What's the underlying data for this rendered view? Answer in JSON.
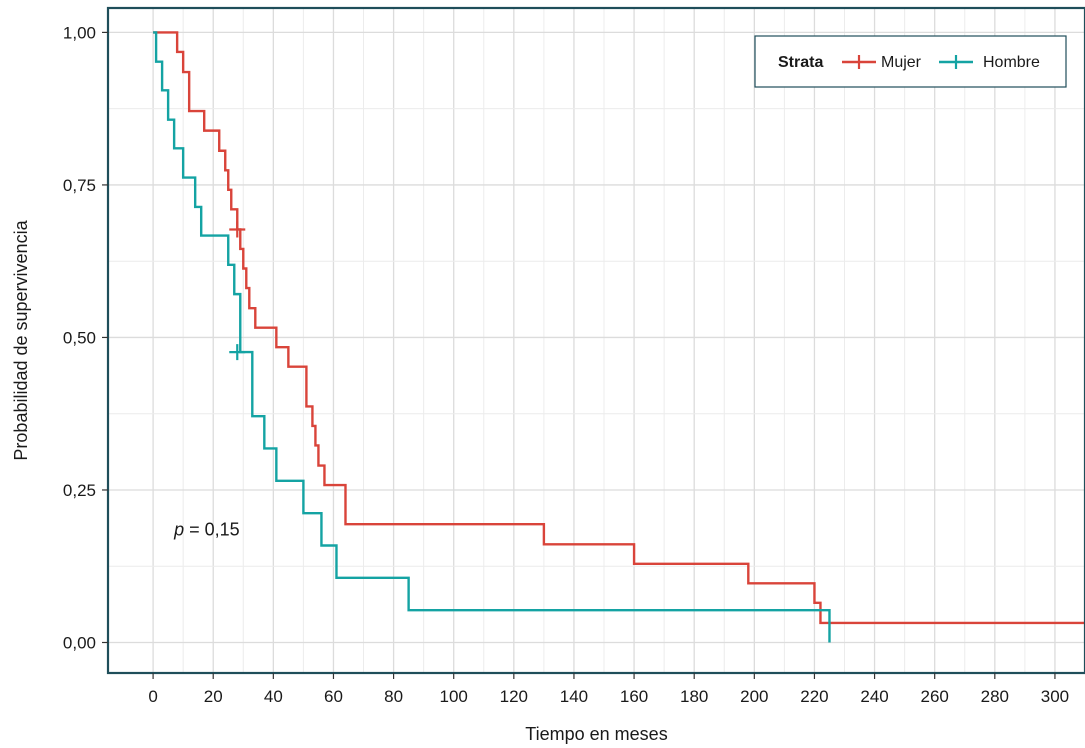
{
  "chart_data": {
    "type": "line",
    "subtype": "kaplan-meier-step",
    "xlabel": "Tiempo en meses",
    "ylabel": "Probabilidad de supervivencia",
    "xlim": [
      -15,
      310
    ],
    "ylim": [
      -0.05,
      1.04
    ],
    "x_ticks": [
      0,
      20,
      40,
      60,
      80,
      100,
      120,
      140,
      160,
      180,
      200,
      220,
      240,
      260,
      280,
      300
    ],
    "x_tick_labels": [
      "0",
      "20",
      "40",
      "60",
      "80",
      "100",
      "120",
      "140",
      "160",
      "180",
      "200",
      "220",
      "240",
      "260",
      "280",
      "300"
    ],
    "y_ticks": [
      0,
      0.25,
      0.5,
      0.75,
      1.0
    ],
    "y_tick_labels": [
      "0,00",
      "0,25",
      "0,50",
      "0,75",
      "1,00"
    ],
    "grid": true,
    "legend": {
      "title": "Strata",
      "position": "top-right"
    },
    "annotation": {
      "prefix": "p",
      "text": " = 0,15",
      "x": 7,
      "y": 0.185
    },
    "series": [
      {
        "name": "Mujer",
        "color": "#d9443a",
        "x": [
          0,
          8,
          10,
          12,
          17,
          22,
          24,
          25,
          26,
          28,
          29,
          30,
          31,
          32,
          33,
          34,
          37,
          41,
          45,
          51,
          53,
          54,
          55,
          57,
          60,
          64,
          130,
          160,
          198,
          220,
          222,
          224,
          310
        ],
        "y": [
          1.0,
          0.968,
          0.935,
          0.871,
          0.839,
          0.806,
          0.774,
          0.742,
          0.71,
          0.677,
          0.645,
          0.613,
          0.581,
          0.548,
          0.548,
          0.516,
          0.516,
          0.484,
          0.452,
          0.387,
          0.355,
          0.323,
          0.29,
          0.258,
          0.258,
          0.194,
          0.161,
          0.129,
          0.097,
          0.065,
          0.032,
          0.032,
          0.032
        ],
        "censors": [
          [
            28,
            0.677
          ]
        ]
      },
      {
        "name": "Hombre",
        "color": "#14a3a3",
        "x": [
          0,
          1,
          3,
          5,
          6,
          7,
          10,
          14,
          16,
          25,
          27,
          29,
          33,
          37,
          41,
          50,
          56,
          61,
          85,
          225
        ],
        "y": [
          1.0,
          0.952,
          0.905,
          0.857,
          0.857,
          0.81,
          0.762,
          0.714,
          0.667,
          0.619,
          0.571,
          0.476,
          0.371,
          0.318,
          0.265,
          0.212,
          0.159,
          0.106,
          0.053,
          0.0
        ],
        "censors": [
          [
            28,
            0.476
          ]
        ]
      }
    ]
  }
}
